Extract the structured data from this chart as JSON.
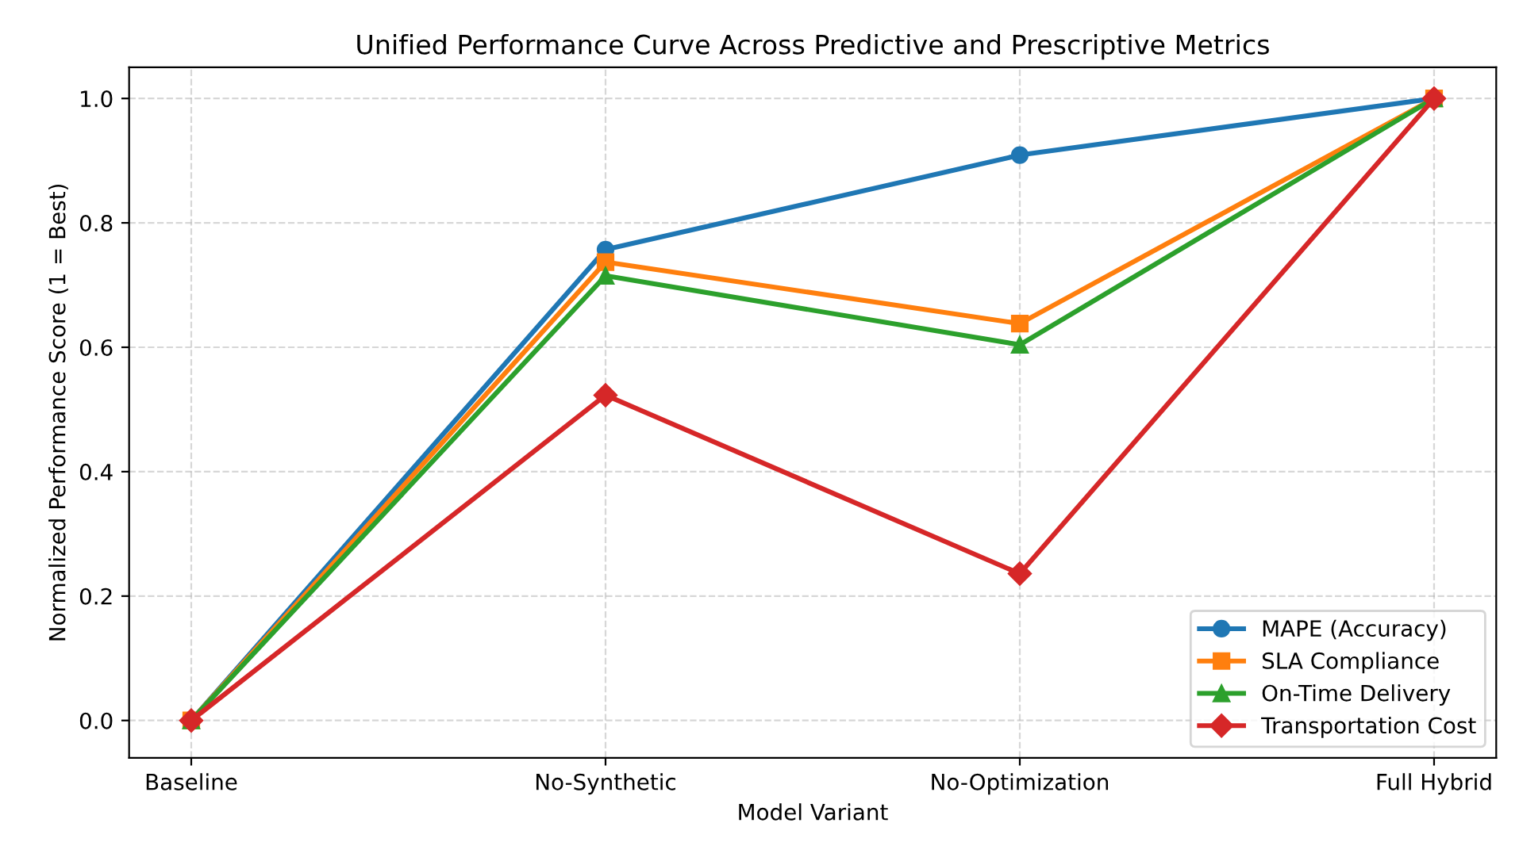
{
  "chart_data": {
    "type": "line",
    "title": "Unified Performance Curve Across Predictive and Prescriptive Metrics",
    "xlabel": "Model Variant",
    "ylabel": "Normalized Performance Score (1 = Best)",
    "categories": [
      "Baseline",
      "No-Synthetic",
      "No-Optimization",
      "Full Hybrid"
    ],
    "ylim": [
      -0.06,
      1.05
    ],
    "yticks": [
      {
        "value": 0,
        "label": "0.0"
      },
      {
        "value": 0.2,
        "label": "0.2"
      },
      {
        "value": 0.4,
        "label": "0.4"
      },
      {
        "value": 0.6,
        "label": "0.6"
      },
      {
        "value": 0.8,
        "label": "0.8"
      },
      {
        "value": 1,
        "label": "1.0"
      }
    ],
    "grid": true,
    "legend": "bottom right",
    "line_style": "solid",
    "series": [
      {
        "name": "MAPE (Accuracy)",
        "color": "#1f77b4",
        "marker": "circle",
        "values": [
          0,
          0.757,
          0.909,
          1.0
        ]
      },
      {
        "name": "SLA Compliance",
        "color": "#ff7f0e",
        "marker": "square",
        "values": [
          0,
          0.737,
          0.638,
          1.0
        ]
      },
      {
        "name": "On-Time Delivery",
        "color": "#2ca02c",
        "marker": "triangle",
        "values": [
          0,
          0.715,
          0.604,
          1.0
        ]
      },
      {
        "name": "Transportation Cost",
        "color": "#d62728",
        "marker": "diamond",
        "values": [
          0,
          0.523,
          0.236,
          1.0
        ]
      }
    ]
  }
}
